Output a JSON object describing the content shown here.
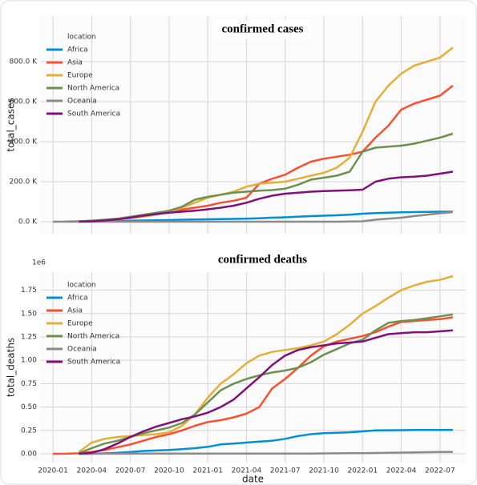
{
  "chart_data": [
    {
      "type": "line",
      "title": "confirmed cases",
      "y_label": "total_cases",
      "legend_title": "location",
      "legend": "upper left",
      "grid": true,
      "x": [
        "2020-01",
        "2020-02",
        "2020-03",
        "2020-04",
        "2020-05",
        "2020-06",
        "2020-07",
        "2020-08",
        "2020-09",
        "2020-10",
        "2020-11",
        "2020-12",
        "2021-01",
        "2021-02",
        "2021-03",
        "2021-04",
        "2021-05",
        "2021-06",
        "2021-07",
        "2021-08",
        "2021-09",
        "2021-10",
        "2021-11",
        "2021-12",
        "2022-01",
        "2022-02",
        "2022-03",
        "2022-04",
        "2022-05",
        "2022-06",
        "2022-07",
        "2022-08"
      ],
      "xlim": [
        "2019-12",
        "2022-09"
      ],
      "ylim": [
        -60000,
        1028000
      ],
      "yticks": [
        {
          "value": 0,
          "label": "0.0 K"
        },
        {
          "value": 200000,
          "label": "200.0 K"
        },
        {
          "value": 400000,
          "label": "400.0 K"
        },
        {
          "value": 600000,
          "label": "600.0 K"
        },
        {
          "value": 800000,
          "label": "800.0 K"
        }
      ],
      "series": [
        {
          "name": "Africa",
          "color": "#008fd5",
          "values": [
            null,
            null,
            200,
            500,
            1000,
            2500,
            5000,
            6000,
            7000,
            8000,
            10000,
            11000,
            12000,
            13000,
            14000,
            15000,
            17000,
            20000,
            22000,
            25000,
            28000,
            30000,
            32000,
            35000,
            40000,
            43000,
            45000,
            47000,
            48000,
            49000,
            50000,
            50000
          ]
        },
        {
          "name": "Asia",
          "color": "#fc4f30",
          "values": [
            null,
            1000,
            2000,
            4000,
            7000,
            12000,
            20000,
            28000,
            38000,
            50000,
            60000,
            70000,
            80000,
            95000,
            105000,
            120000,
            190000,
            215000,
            235000,
            270000,
            300000,
            315000,
            325000,
            335000,
            350000,
            420000,
            480000,
            560000,
            590000,
            610000,
            630000,
            680000
          ]
        },
        {
          "name": "Europe",
          "color": "#e5ae38",
          "values": [
            null,
            null,
            2000,
            5000,
            8000,
            12000,
            18000,
            25000,
            35000,
            50000,
            70000,
            95000,
            120000,
            135000,
            150000,
            175000,
            190000,
            195000,
            200000,
            215000,
            230000,
            245000,
            270000,
            320000,
            450000,
            600000,
            680000,
            740000,
            780000,
            800000,
            820000,
            870000
          ]
        },
        {
          "name": "North America",
          "color": "#6d904f",
          "values": [
            null,
            null,
            1000,
            5000,
            10000,
            15000,
            25000,
            35000,
            45000,
            55000,
            75000,
            110000,
            125000,
            135000,
            145000,
            150000,
            155000,
            158000,
            165000,
            185000,
            210000,
            220000,
            230000,
            250000,
            350000,
            370000,
            375000,
            380000,
            390000,
            405000,
            420000,
            440000
          ]
        },
        {
          "name": "Oceania",
          "color": "#8b8b8b",
          "values": [
            0,
            0,
            0,
            0,
            0,
            0,
            0,
            0,
            0,
            0,
            0,
            0,
            0,
            0,
            0,
            0,
            0,
            0,
            0,
            0,
            0,
            0,
            0,
            1000,
            2000,
            10000,
            15000,
            20000,
            28000,
            35000,
            42000,
            48000
          ]
        },
        {
          "name": "South America",
          "color": "#810f7c",
          "values": [
            null,
            null,
            500,
            2000,
            6000,
            12000,
            20000,
            30000,
            38000,
            45000,
            50000,
            55000,
            62000,
            70000,
            80000,
            95000,
            115000,
            130000,
            140000,
            145000,
            150000,
            153000,
            155000,
            157000,
            160000,
            200000,
            215000,
            222000,
            225000,
            230000,
            240000,
            250000
          ]
        }
      ]
    },
    {
      "type": "line",
      "title": "confirmed deaths",
      "y_label": "total_deaths",
      "x_label": "date",
      "offset_label": "1e6",
      "legend_title": "location",
      "legend": "upper left",
      "grid": true,
      "x": [
        "2020-01",
        "2020-02",
        "2020-03",
        "2020-04",
        "2020-05",
        "2020-06",
        "2020-07",
        "2020-08",
        "2020-09",
        "2020-10",
        "2020-11",
        "2020-12",
        "2021-01",
        "2021-02",
        "2021-03",
        "2021-04",
        "2021-05",
        "2021-06",
        "2021-07",
        "2021-08",
        "2021-09",
        "2021-10",
        "2021-11",
        "2021-12",
        "2022-01",
        "2022-02",
        "2022-03",
        "2022-04",
        "2022-05",
        "2022-06",
        "2022-07",
        "2022-08"
      ],
      "xlim": [
        "2019-12",
        "2022-09"
      ],
      "xticks": [
        "2020-01",
        "2020-04",
        "2020-07",
        "2020-10",
        "2021-01",
        "2021-04",
        "2021-07",
        "2021-10",
        "2022-01",
        "2022-04",
        "2022-07"
      ],
      "ylim": [
        -0.094,
        1.943
      ],
      "yticks": [
        {
          "value": 0,
          "label": "0.00"
        },
        0.25,
        {
          "value": 0.5,
          "label": "0.50"
        },
        0.75,
        {
          "value": 1,
          "label": "1.00"
        },
        1.25,
        {
          "value": 1.5,
          "label": "1.50"
        },
        1.75
      ],
      "series": [
        {
          "name": "Africa",
          "color": "#008fd5",
          "values": [
            null,
            null,
            0,
            0.001,
            0.004,
            0.01,
            0.02,
            0.03,
            0.035,
            0.04,
            0.05,
            0.06,
            0.075,
            0.1,
            0.11,
            0.12,
            0.13,
            0.14,
            0.16,
            0.19,
            0.21,
            0.22,
            0.225,
            0.23,
            0.24,
            0.25,
            0.252,
            0.253,
            0.254,
            0.255,
            0.255,
            0.256
          ]
        },
        {
          "name": "Asia",
          "color": "#fc4f30",
          "values": [
            0,
            0.001,
            0.005,
            0.02,
            0.04,
            0.07,
            0.1,
            0.14,
            0.18,
            0.21,
            0.25,
            0.3,
            0.34,
            0.36,
            0.39,
            0.43,
            0.5,
            0.7,
            0.8,
            0.92,
            1.05,
            1.15,
            1.2,
            1.23,
            1.26,
            1.3,
            1.36,
            1.41,
            1.42,
            1.43,
            1.44,
            1.46
          ]
        },
        {
          "name": "Europe",
          "color": "#e5ae38",
          "values": [
            null,
            null,
            0.02,
            0.12,
            0.16,
            0.18,
            0.19,
            0.2,
            0.21,
            0.23,
            0.3,
            0.42,
            0.6,
            0.75,
            0.85,
            0.97,
            1.05,
            1.09,
            1.11,
            1.13,
            1.16,
            1.2,
            1.28,
            1.38,
            1.5,
            1.58,
            1.67,
            1.75,
            1.8,
            1.84,
            1.86,
            1.9
          ]
        },
        {
          "name": "North America",
          "color": "#6d904f",
          "values": [
            null,
            null,
            0.005,
            0.06,
            0.11,
            0.14,
            0.18,
            0.22,
            0.25,
            0.28,
            0.33,
            0.42,
            0.55,
            0.68,
            0.75,
            0.8,
            0.84,
            0.87,
            0.89,
            0.92,
            0.98,
            1.06,
            1.12,
            1.18,
            1.22,
            1.32,
            1.4,
            1.42,
            1.43,
            1.45,
            1.47,
            1.49
          ]
        },
        {
          "name": "Oceania",
          "color": "#8b8b8b",
          "values": [
            null,
            null,
            0,
            0,
            0.001,
            0.001,
            0.001,
            0.002,
            0.002,
            0.002,
            0.002,
            0.002,
            0.002,
            0.002,
            0.002,
            0.002,
            0.002,
            0.002,
            0.002,
            0.003,
            0.003,
            0.004,
            0.005,
            0.006,
            0.007,
            0.009,
            0.011,
            0.013,
            0.015,
            0.017,
            0.019,
            0.02
          ]
        },
        {
          "name": "South America",
          "color": "#810f7c",
          "values": [
            null,
            null,
            0.001,
            0.01,
            0.05,
            0.11,
            0.18,
            0.24,
            0.29,
            0.33,
            0.37,
            0.4,
            0.44,
            0.5,
            0.58,
            0.7,
            0.82,
            0.95,
            1.05,
            1.11,
            1.14,
            1.16,
            1.18,
            1.19,
            1.2,
            1.24,
            1.28,
            1.29,
            1.3,
            1.3,
            1.31,
            1.32
          ]
        }
      ]
    }
  ]
}
